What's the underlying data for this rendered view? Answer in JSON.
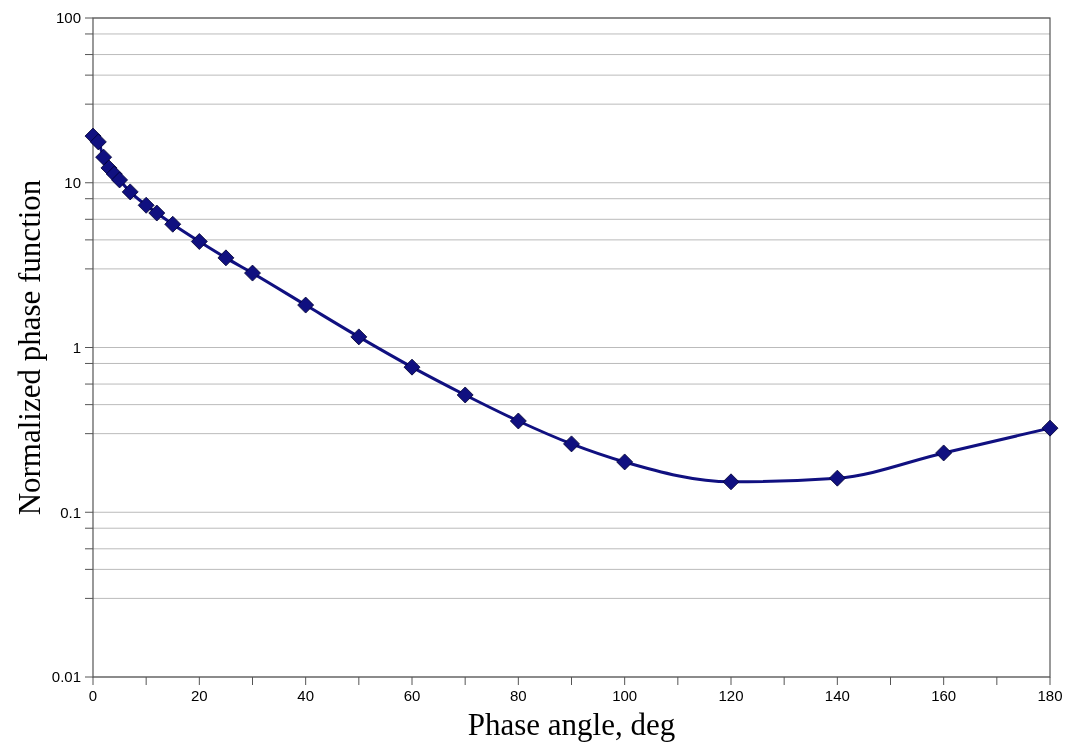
{
  "chart_data": {
    "type": "line",
    "xlabel": "Phase angle, deg",
    "ylabel": "Normalized phase function",
    "x": [
      0,
      1,
      2,
      3,
      4,
      5,
      7,
      10,
      12,
      15,
      20,
      25,
      30,
      40,
      50,
      60,
      70,
      80,
      90,
      100,
      120,
      140,
      160,
      180
    ],
    "series": [
      {
        "color": "#101080",
        "values": [
          19.2,
          17.7,
          14.3,
          12.3,
          11.3,
          10.4,
          8.8,
          7.3,
          6.55,
          5.6,
          4.4,
          3.5,
          2.83,
          1.81,
          1.16,
          0.76,
          0.515,
          0.358,
          0.26,
          0.202,
          0.153,
          0.161,
          0.229,
          0.324
        ]
      }
    ],
    "xlim": [
      0,
      180
    ],
    "xticks": [
      0,
      {
        "value": 10,
        "label": null
      },
      20,
      {
        "value": 30,
        "label": null
      },
      40,
      {
        "value": 50,
        "label": null
      },
      60,
      {
        "value": 70,
        "label": null
      },
      80,
      {
        "value": 90,
        "label": null
      },
      100,
      {
        "value": 110,
        "label": null
      },
      120,
      {
        "value": 130,
        "label": null
      },
      140,
      {
        "value": 150,
        "label": null
      },
      160,
      {
        "value": 170,
        "label": null
      },
      180
    ],
    "ylim": [
      0.01,
      100
    ],
    "yticks": [
      0.01,
      {
        "value": 0.03,
        "label": null
      },
      {
        "value": 0.045,
        "label": null
      },
      {
        "value": 0.06,
        "label": null
      },
      {
        "value": 0.08,
        "label": null
      },
      0.1,
      {
        "value": 0.3,
        "label": null
      },
      {
        "value": 0.45,
        "label": null
      },
      {
        "value": 0.6,
        "label": null
      },
      {
        "value": 0.8,
        "label": null
      },
      1,
      {
        "value": 3,
        "label": null
      },
      {
        "value": 4.5,
        "label": null
      },
      {
        "value": 6,
        "label": null
      },
      {
        "value": 8,
        "label": null
      },
      10,
      {
        "value": 30,
        "label": null
      },
      {
        "value": 45,
        "label": null
      },
      {
        "value": 60,
        "label": null
      },
      {
        "value": 80,
        "label": null
      },
      100
    ],
    "log": true,
    "grid": "y",
    "marker": "diamond",
    "line_style": "solid"
  }
}
